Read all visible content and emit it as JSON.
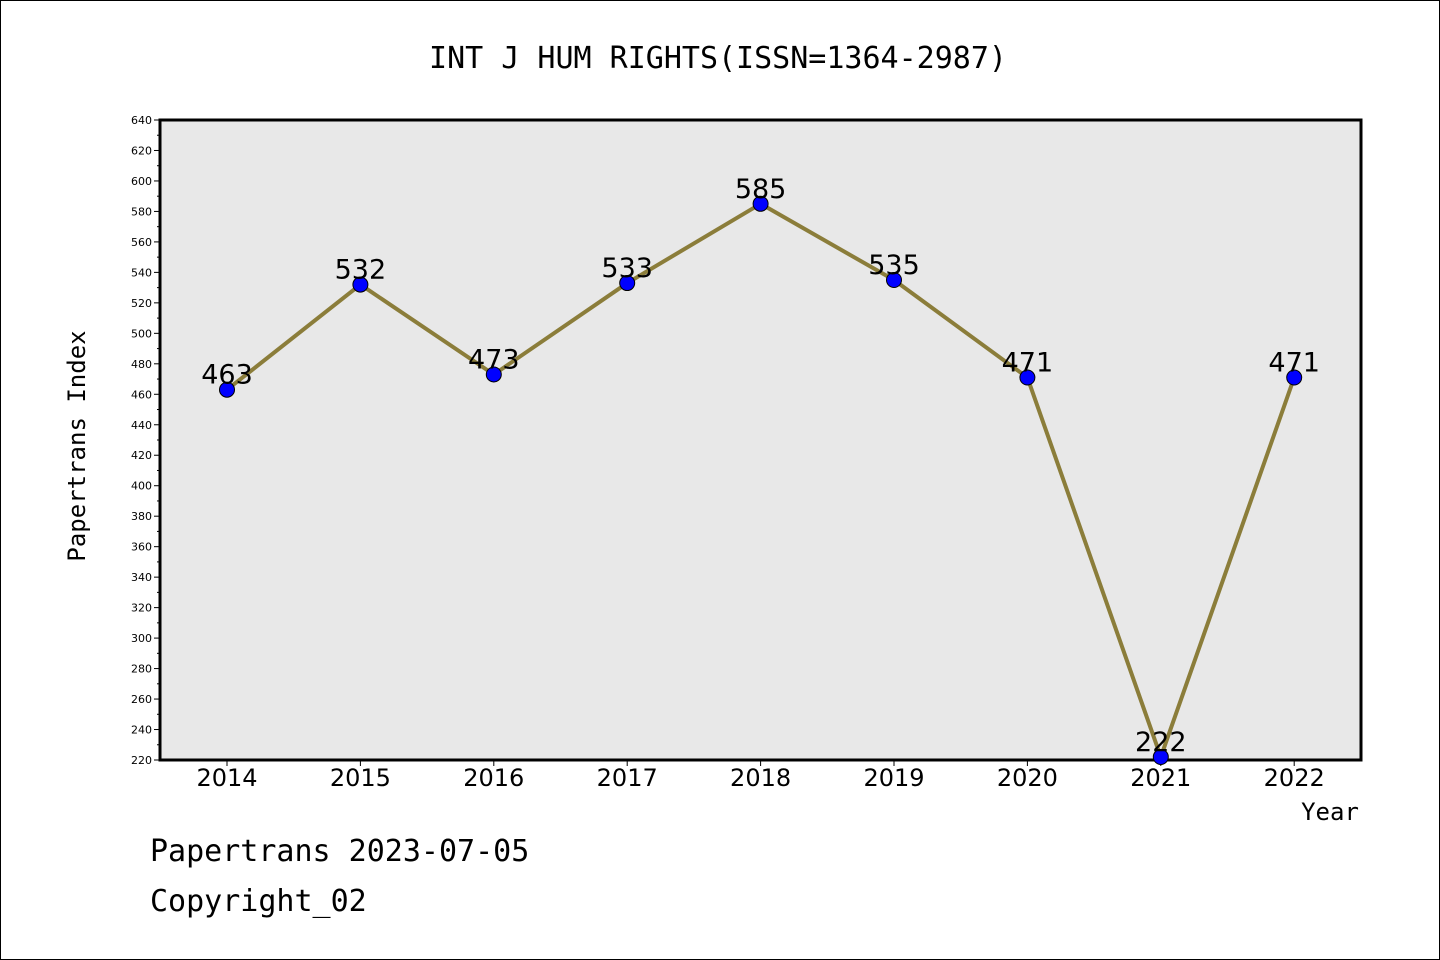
{
  "chart_data": {
    "type": "line",
    "title": "INT J HUM RIGHTS(ISSN=1364-2987)",
    "xlabel": "Year",
    "ylabel": "Papertrans Index",
    "categories": [
      "2014",
      "2015",
      "2016",
      "2017",
      "2018",
      "2019",
      "2020",
      "2021",
      "2022"
    ],
    "values": [
      463,
      532,
      473,
      533,
      585,
      535,
      471,
      222,
      471
    ],
    "data_labels": [
      "463",
      "532",
      "473",
      "533",
      "585",
      "535",
      "471",
      "222",
      "471"
    ],
    "ylim": [
      220,
      640
    ],
    "yticks": [
      220,
      240,
      260,
      280,
      300,
      320,
      340,
      360,
      380,
      400,
      420,
      440,
      460,
      480,
      500,
      520,
      540,
      560,
      580,
      600,
      620,
      640
    ],
    "grid": false,
    "line_color": "#8b7d3a",
    "marker_color": "#0000ff",
    "plot_background": "#e8e8e8"
  },
  "footer": {
    "line1": "Papertrans 2023-07-05",
    "line2": "Copyright_02"
  }
}
